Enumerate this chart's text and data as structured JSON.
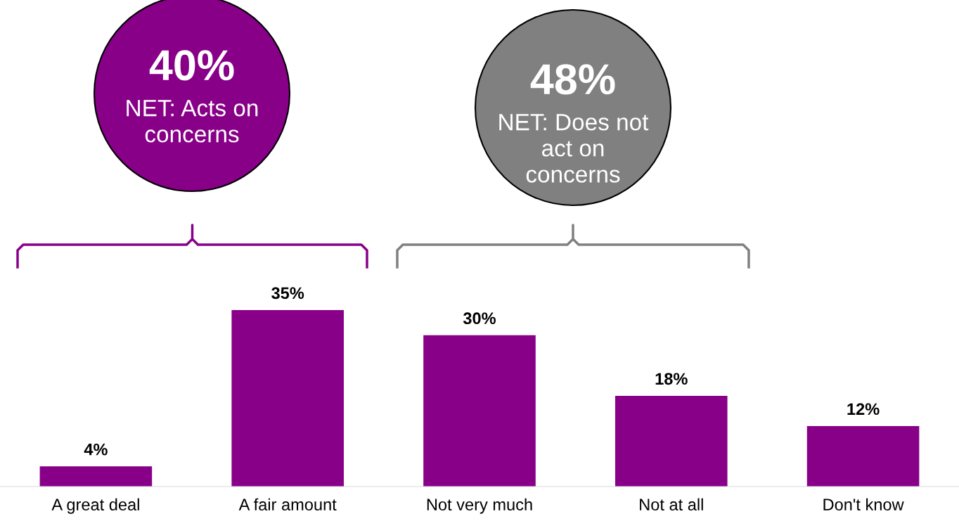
{
  "chart_data": {
    "type": "bar",
    "categories": [
      "A great deal",
      "A fair amount",
      "Not very much",
      "Not at all",
      "Don't know"
    ],
    "values": [
      4,
      35,
      30,
      18,
      12
    ],
    "value_labels": [
      "4%",
      "35%",
      "30%",
      "18%",
      "12%"
    ],
    "color": "#880088",
    "annotations": [
      "40%",
      "NET: Acts on\nconcerns",
      "48%",
      "NET: Does not\nact on\nconcerns"
    ]
  }
}
